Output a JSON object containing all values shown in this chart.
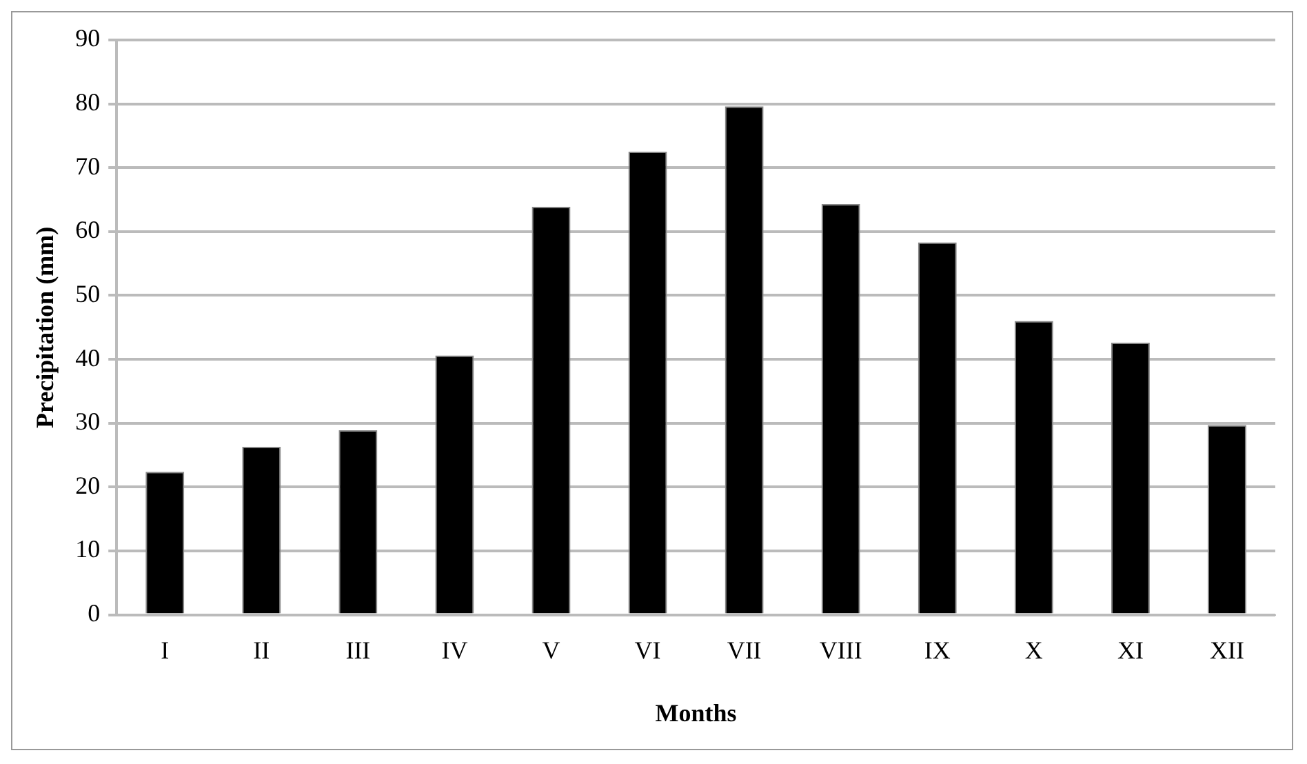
{
  "chart_data": {
    "type": "bar",
    "xlabel": "Months",
    "ylabel": "Precipitation (mm)",
    "categories": [
      "I",
      "II",
      "III",
      "IV",
      "V",
      "VI",
      "VII",
      "VIII",
      "IX",
      "X",
      "XI",
      "XII"
    ],
    "values": [
      22.4,
      26.3,
      28.9,
      40.6,
      63.9,
      72.5,
      79.6,
      64.3,
      58.3,
      46.0,
      42.6,
      29.7
    ],
    "color": "#000000",
    "ylim": [
      0,
      90
    ],
    "yticks": [
      0,
      10,
      20,
      30,
      40,
      50,
      60,
      70,
      80,
      90
    ],
    "grid": "y",
    "legend": false
  }
}
